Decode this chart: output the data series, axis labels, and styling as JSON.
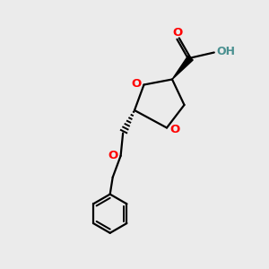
{
  "bg_color": "#ebebeb",
  "bond_color": "#000000",
  "o_color": "#ff0000",
  "oh_color": "#4a9090",
  "carbonyl_o_color": "#ff0000",
  "line_width": 1.6,
  "fig_size": [
    3.0,
    3.0
  ],
  "dpi": 100,
  "xlim": [
    0,
    10
  ],
  "ylim": [
    0,
    10
  ]
}
